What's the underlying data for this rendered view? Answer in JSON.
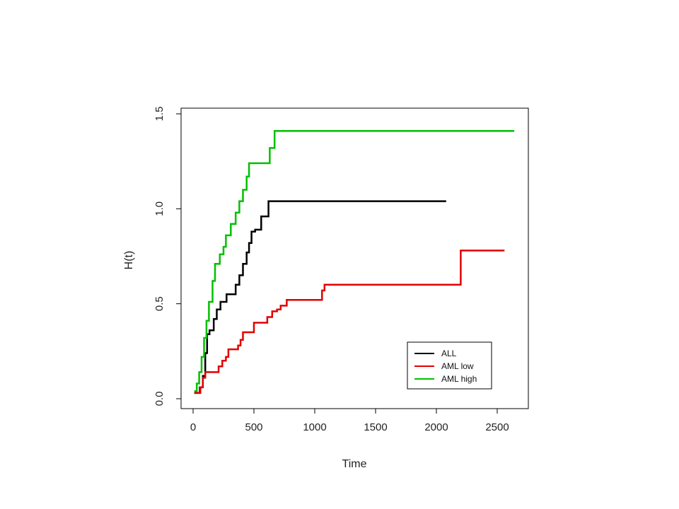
{
  "chart_data": {
    "type": "line",
    "step": true,
    "title": "",
    "xlabel": "Time",
    "ylabel": "H(t)",
    "xlim": [
      0,
      2650
    ],
    "ylim": [
      0,
      1.5
    ],
    "xticks": [
      0,
      500,
      1000,
      1500,
      2000,
      2500
    ],
    "yticks": [
      0.0,
      0.5,
      1.0,
      1.5
    ],
    "xtick_labels": [
      "0",
      "500",
      "1000",
      "1500",
      "2000",
      "2500"
    ],
    "ytick_labels": [
      "0.0",
      "0.5",
      "1.0",
      "1.5"
    ],
    "grid": false,
    "legend_position": "bottom-right",
    "series": [
      {
        "name": "ALL",
        "color": "#000000",
        "x": [
          10,
          35,
          55,
          80,
          100,
          115,
          135,
          170,
          195,
          225,
          275,
          350,
          380,
          410,
          440,
          460,
          480,
          510,
          560,
          620,
          670,
          2080
        ],
        "y": [
          0.03,
          0.03,
          0.06,
          0.12,
          0.24,
          0.34,
          0.36,
          0.42,
          0.47,
          0.51,
          0.55,
          0.6,
          0.65,
          0.71,
          0.77,
          0.82,
          0.88,
          0.89,
          0.96,
          1.04,
          1.04,
          1.04
        ]
      },
      {
        "name": "AML low",
        "color": "#e00000",
        "x": [
          10,
          40,
          60,
          80,
          100,
          130,
          210,
          240,
          270,
          290,
          310,
          370,
          390,
          410,
          430,
          500,
          610,
          650,
          690,
          720,
          770,
          1060,
          1080,
          2200,
          2560
        ],
        "y": [
          0.03,
          0.03,
          0.06,
          0.11,
          0.14,
          0.14,
          0.17,
          0.2,
          0.22,
          0.26,
          0.26,
          0.28,
          0.31,
          0.35,
          0.35,
          0.4,
          0.43,
          0.46,
          0.47,
          0.49,
          0.52,
          0.57,
          0.6,
          0.78,
          0.78
        ]
      },
      {
        "name": "AML high",
        "color": "#00c000",
        "x": [
          10,
          30,
          50,
          70,
          90,
          110,
          130,
          160,
          180,
          220,
          250,
          270,
          310,
          350,
          380,
          410,
          440,
          460,
          480,
          630,
          670,
          700,
          2640
        ],
        "y": [
          0.04,
          0.08,
          0.14,
          0.22,
          0.32,
          0.41,
          0.51,
          0.62,
          0.71,
          0.76,
          0.8,
          0.86,
          0.92,
          0.98,
          1.04,
          1.1,
          1.17,
          1.24,
          1.24,
          1.32,
          1.41,
          1.41,
          1.41
        ]
      }
    ]
  }
}
